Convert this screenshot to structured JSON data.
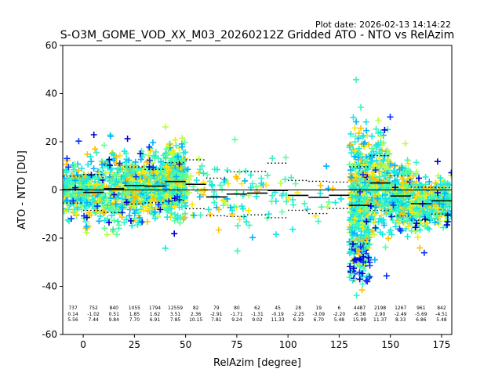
{
  "plot_date": "Plot date: 2026-02-13 14:14:22",
  "chart_data": {
    "type": "scatter",
    "title": "S-O3M_GOME_VOD_XX_M03_20260212Z Gridded ATO - NTO vs RelAzim",
    "xlabel": "RelAzim [degree]",
    "ylabel": "ATO - NTO [DU]",
    "xlim": [
      -10,
      180
    ],
    "ylim": [
      -60,
      60
    ],
    "xticks": [
      0,
      25,
      50,
      75,
      100,
      125,
      150,
      175
    ],
    "yticks": [
      -60,
      -40,
      -20,
      0,
      20,
      40,
      60
    ],
    "colors": {
      "cyan": "#17e8e0",
      "sky": "#00b2ff",
      "aqua": "#37f5c0",
      "mint": "#5cff9a",
      "lime": "#b8ff40",
      "yellow": "#ffe600",
      "orange": "#ffc000",
      "blue": "#0a32ff",
      "navy": "#0000c8",
      "mean_line": "#000000"
    },
    "bin_stats": [
      {
        "x": -5,
        "count": "737",
        "mean": "0.14",
        "std": "5.56",
        "y_mean": 0.14,
        "y_std": 5.56
      },
      {
        "x": 5,
        "count": "752",
        "mean": "-1.02",
        "std": "7.44",
        "y_mean": -1.02,
        "y_std": 7.44
      },
      {
        "x": 15,
        "count": "840",
        "mean": "0.51",
        "std": "9.84",
        "y_mean": 0.51,
        "y_std": 9.84
      },
      {
        "x": 25,
        "count": "1055",
        "mean": "1.85",
        "std": "7.70",
        "y_mean": 1.85,
        "y_std": 7.7
      },
      {
        "x": 35,
        "count": "1794",
        "mean": "1.62",
        "std": "6.91",
        "y_mean": 1.62,
        "y_std": 6.91
      },
      {
        "x": 45,
        "count": "12559",
        "mean": "3.51",
        "std": "7.85",
        "y_mean": 3.51,
        "y_std": 7.85
      },
      {
        "x": 55,
        "count": "82",
        "mean": "2.36",
        "std": "10.15",
        "y_mean": 2.36,
        "y_std": 10.15
      },
      {
        "x": 65,
        "count": "79",
        "mean": "-2.91",
        "std": "7.81",
        "y_mean": -2.91,
        "y_std": 7.81
      },
      {
        "x": 75,
        "count": "80",
        "mean": "-1.71",
        "std": "9.24",
        "y_mean": -1.71,
        "y_std": 9.24
      },
      {
        "x": 85,
        "count": "62",
        "mean": "-1.31",
        "std": "9.02",
        "y_mean": -1.31,
        "y_std": 9.02
      },
      {
        "x": 95,
        "count": "45",
        "mean": "-0.19",
        "std": "11.33",
        "y_mean": -0.19,
        "y_std": 11.33
      },
      {
        "x": 105,
        "count": "28",
        "mean": "-2.25",
        "std": "6.19",
        "y_mean": -2.25,
        "y_std": 6.19
      },
      {
        "x": 115,
        "count": "19",
        "mean": "-3.09",
        "std": "6.70",
        "y_mean": -3.09,
        "y_std": 6.7
      },
      {
        "x": 125,
        "count": "6",
        "mean": "-2.20",
        "std": "5.48",
        "y_mean": -2.2,
        "y_std": 5.48
      },
      {
        "x": 135,
        "count": "4487",
        "mean": "-6.38",
        "std": "15.99",
        "y_mean": -6.38,
        "y_std": 15.99
      },
      {
        "x": 145,
        "count": "2198",
        "mean": "2.90",
        "std": "11.37",
        "y_mean": 2.9,
        "y_std": 11.37
      },
      {
        "x": 155,
        "count": "1267",
        "mean": "-2.49",
        "std": "8.33",
        "y_mean": -2.49,
        "y_std": 8.33
      },
      {
        "x": 165,
        "count": "961",
        "mean": "-5.69",
        "std": "6.86",
        "y_mean": -5.69,
        "y_std": 6.86
      },
      {
        "x": 175,
        "count": "842",
        "mean": "-4.51",
        "std": "5.48",
        "y_mean": -4.51,
        "y_std": 5.48
      }
    ]
  }
}
